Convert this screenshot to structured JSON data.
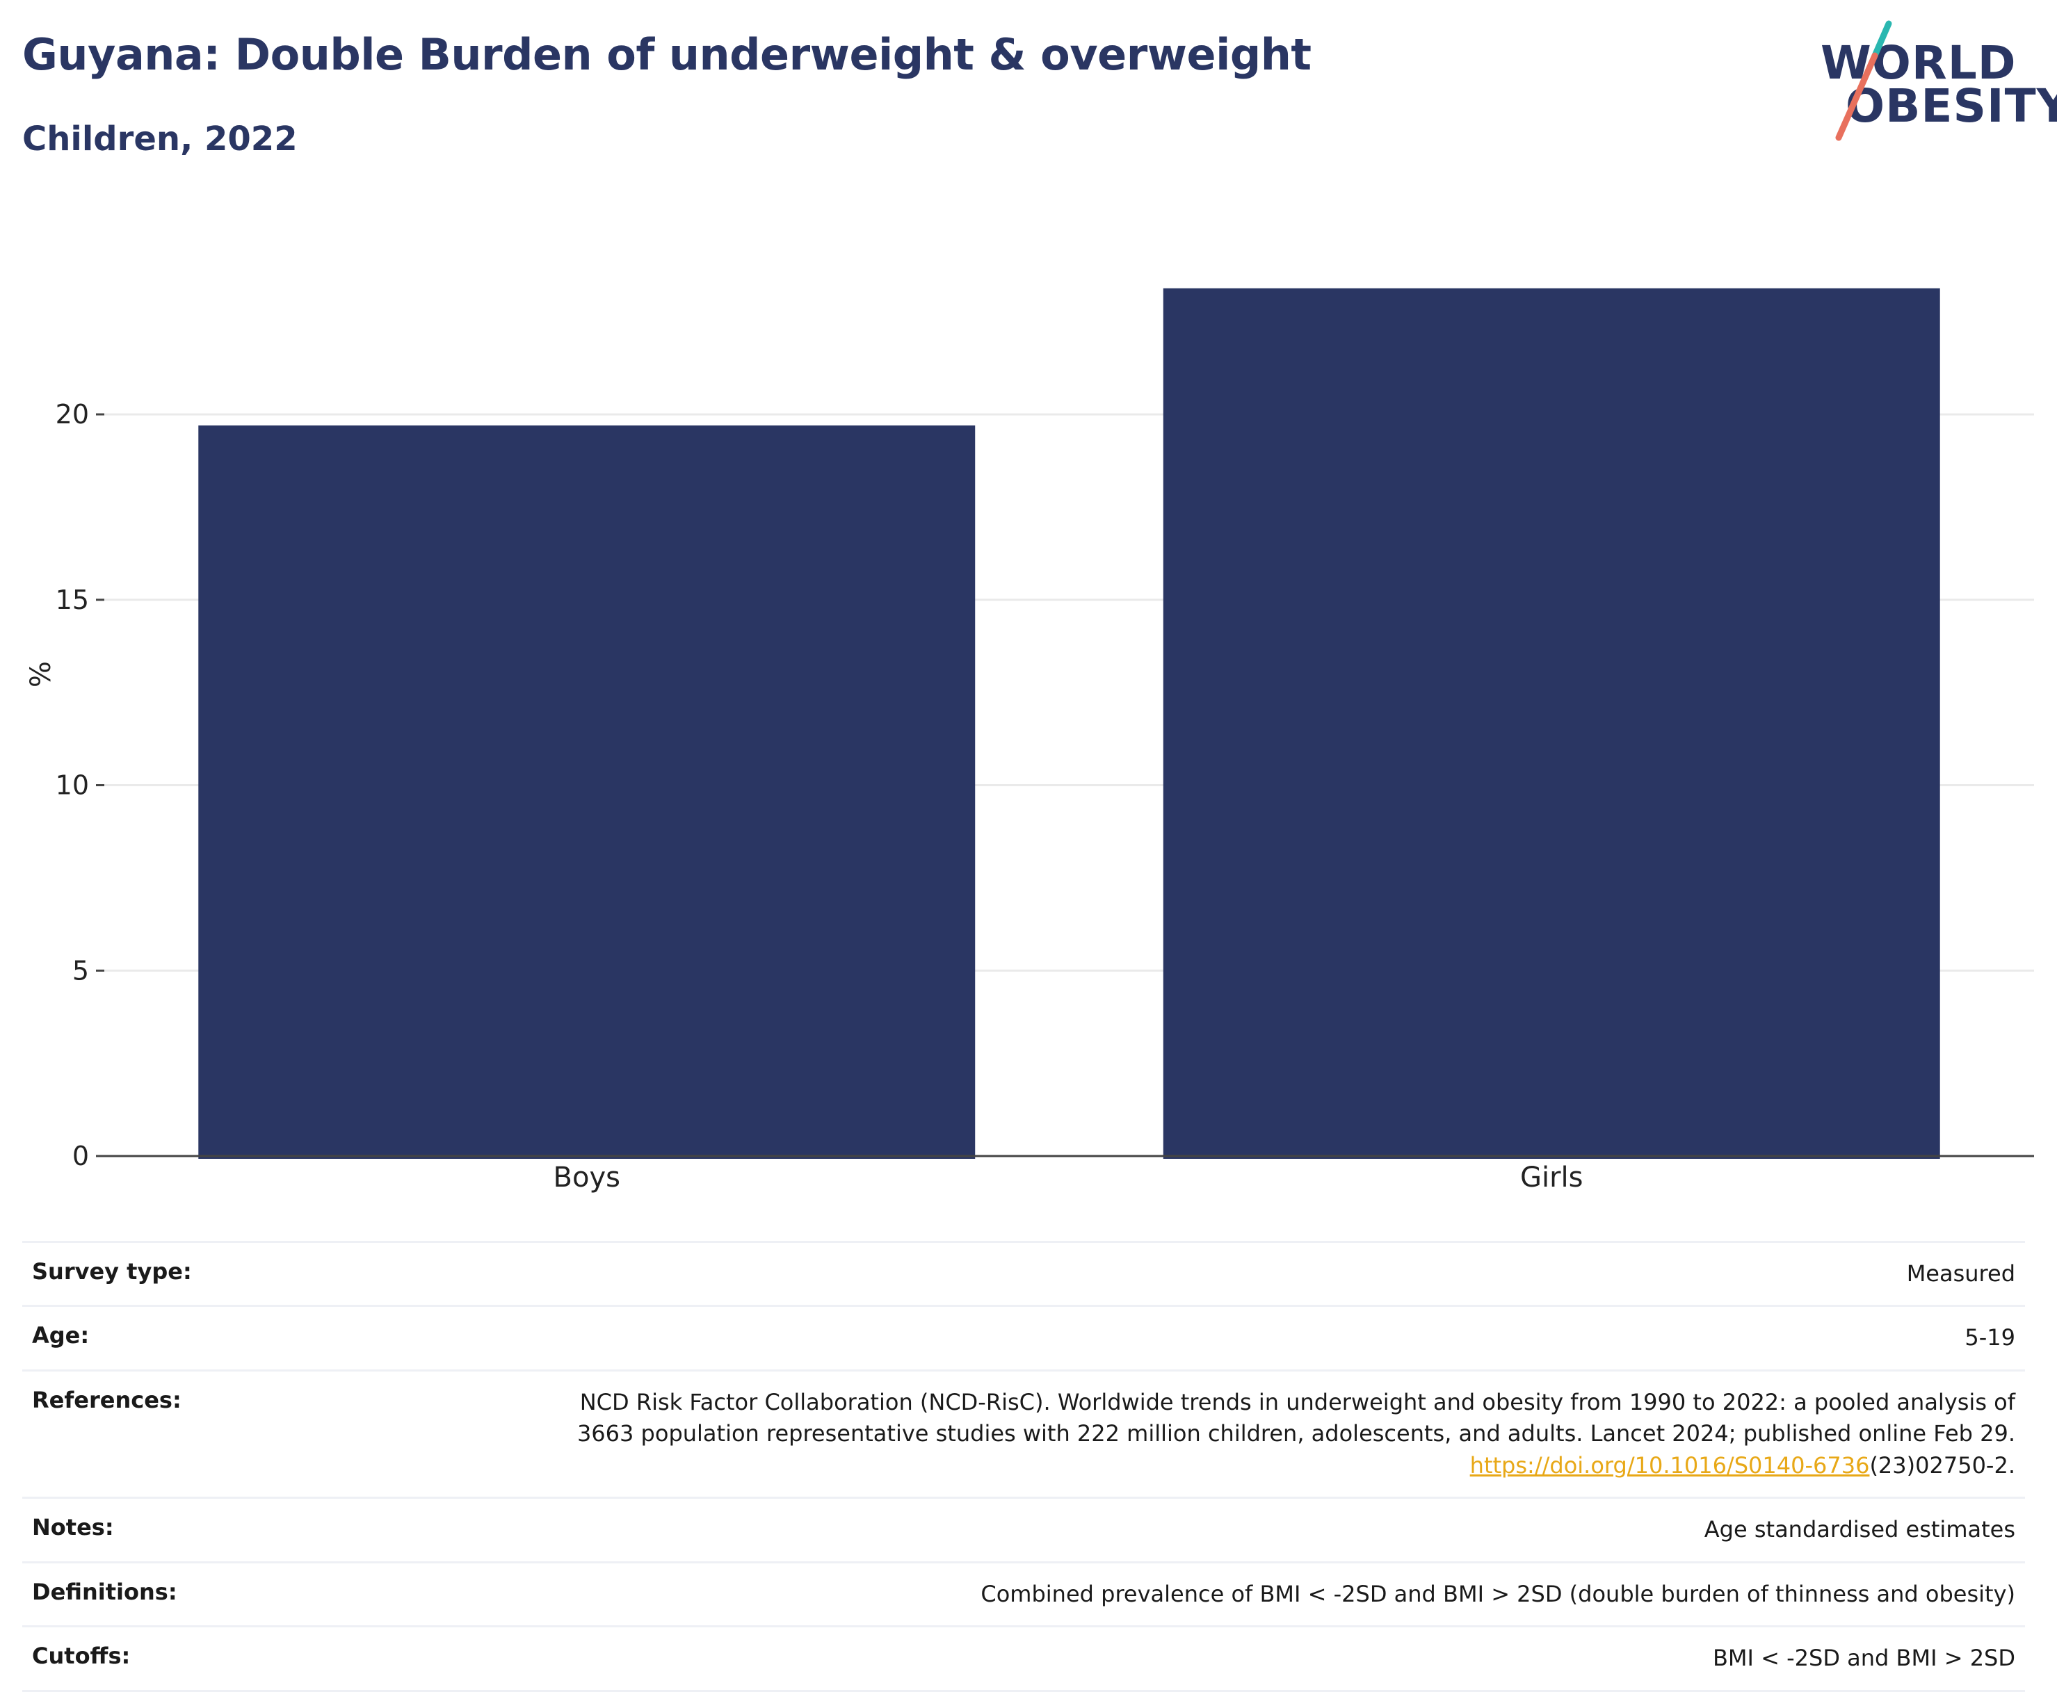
{
  "header": {
    "title": "Guyana: Double Burden of underweight & overweight",
    "subtitle": "Children, 2022"
  },
  "logo": {
    "line1": "WORLD",
    "line2": "OBESITY",
    "colors": {
      "text": "#2a3663",
      "slash_top": "#2ab7b0",
      "slash_bottom": "#e8705d"
    }
  },
  "colors": {
    "bar": "#2a3663",
    "grid": "#eaeaea",
    "axis": "#444444",
    "link": "#e8a817"
  },
  "chart_data": {
    "type": "bar",
    "categories": [
      "Boys",
      "Girls"
    ],
    "values": [
      19.7,
      23.4
    ],
    "ylabel": "%",
    "xlabel": "",
    "ylim": [
      0,
      24.8
    ],
    "yticks": [
      0,
      5,
      10,
      15,
      20
    ],
    "grid": true
  },
  "meta": {
    "rows": [
      {
        "key": "Survey type:",
        "value": "Measured"
      },
      {
        "key": "Age:",
        "value": "5-19"
      },
      {
        "key": "References:",
        "line1": "NCD Risk Factor Collaboration (NCD-RisC). Worldwide trends in underweight and obesity from 1990 to 2022: a pooled analysis of",
        "line2": "3663 population representative studies with 222 million children, adolescents, and adults. Lancet 2024; published online Feb 29.",
        "link": "https://doi.org/10.1016/S0140-6736",
        "link_suffix": "(23)02750-2."
      },
      {
        "key": "Notes:",
        "value": "Age standardised estimates"
      },
      {
        "key": "Definitions:",
        "value": "Combined prevalence of BMI < -2SD and BMI > 2SD (double burden of thinness and obesity)"
      },
      {
        "key": "Cutoffs:",
        "value": "BMI < -2SD and BMI > 2SD"
      }
    ]
  }
}
